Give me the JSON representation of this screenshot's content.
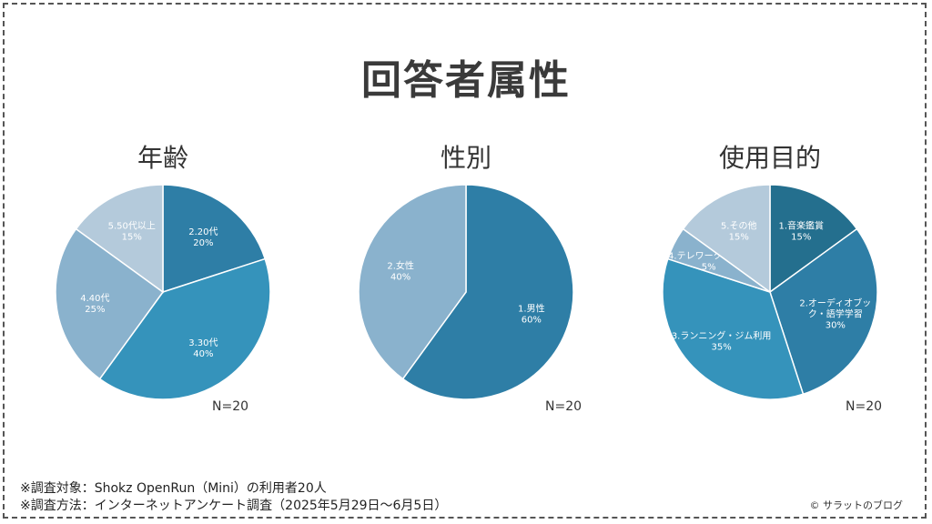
{
  "title": "回答者属性",
  "chart_data": [
    {
      "type": "pie",
      "title": "年齢",
      "n_label": "N=20",
      "slices": [
        {
          "label": "2.20代",
          "value": 20,
          "pct_label": "20%",
          "color": "#2e7ea6"
        },
        {
          "label": "3.30代",
          "value": 40,
          "pct_label": "40%",
          "color": "#3593bb"
        },
        {
          "label": "4.40代",
          "value": 25,
          "pct_label": "25%",
          "color": "#8ab2cd"
        },
        {
          "label": "5.50代以上",
          "value": 15,
          "pct_label": "15%",
          "color": "#b4cadb"
        }
      ]
    },
    {
      "type": "pie",
      "title": "性別",
      "n_label": "N=20",
      "slices": [
        {
          "label": "1.男性",
          "value": 60,
          "pct_label": "60%",
          "color": "#2e7ea6"
        },
        {
          "label": "2.女性",
          "value": 40,
          "pct_label": "40%",
          "color": "#8ab2cd"
        }
      ]
    },
    {
      "type": "pie",
      "title": "使用目的",
      "n_label": "N=20",
      "slices": [
        {
          "label": "1.音楽鑑賞",
          "value": 15,
          "pct_label": "15%",
          "color": "#246f8e"
        },
        {
          "label": "2.オーディオブック・語学学習",
          "value": 30,
          "pct_label": "30%",
          "color": "#2e7ea6"
        },
        {
          "label": "3.ランニング・ジム利用",
          "value": 35,
          "pct_label": "35%",
          "color": "#3593bb"
        },
        {
          "label": "4.テレワーク・通話",
          "value": 5,
          "pct_label": "5%",
          "color": "#8ab2cd"
        },
        {
          "label": "5.その他",
          "value": 15,
          "pct_label": "15%",
          "color": "#b4cadb"
        }
      ]
    }
  ],
  "footnotes": [
    "※調査対象：Shokz OpenRun（Mini）の利用者20人",
    "※調査方法：インターネットアンケート調査（2025年5月29日～6月5日）"
  ],
  "credit": "© サラットのブログ"
}
